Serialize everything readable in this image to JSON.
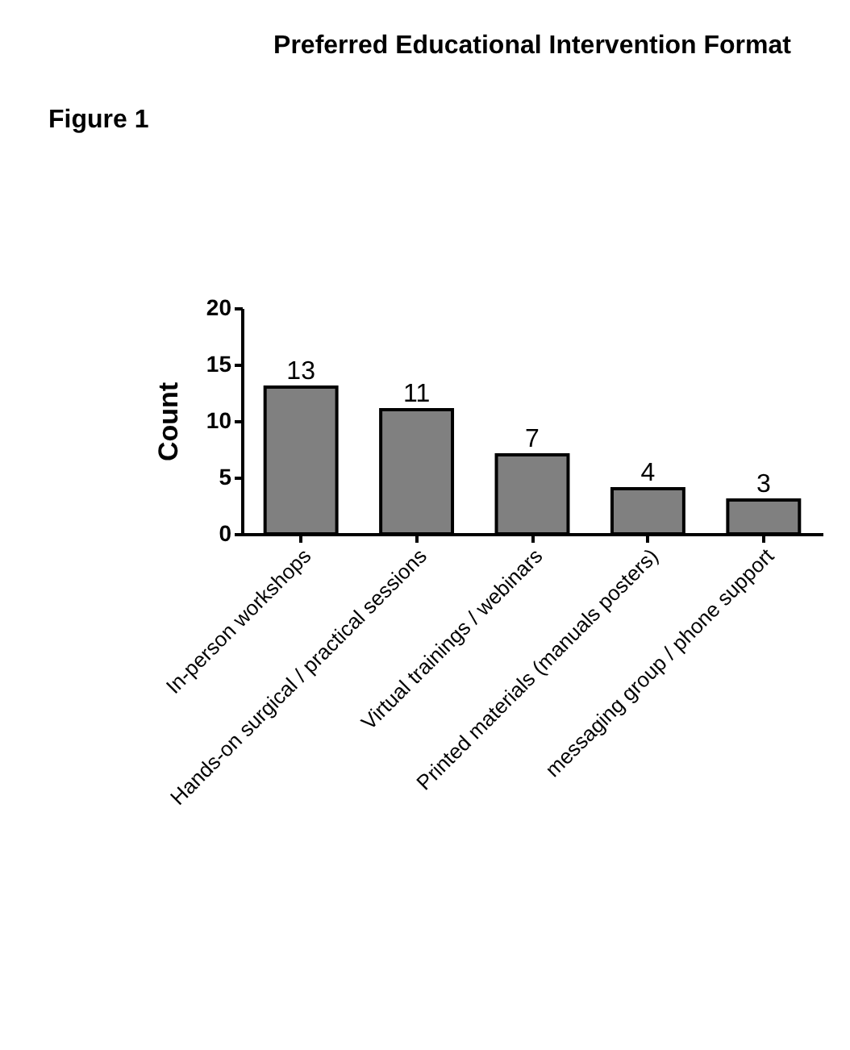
{
  "chart_data": {
    "type": "bar",
    "title": "Preferred Educational Intervention Format",
    "ylabel": "Count",
    "categories": [
      "In-person workshops",
      "Hands-on surgical / practical sessions",
      "Virtual trainings / webinars",
      "Printed materials (manuals posters)",
      "messaging group / phone support"
    ],
    "values": [
      13,
      11,
      7,
      4,
      3
    ],
    "color": "#808080",
    "ylim": [
      0,
      20
    ],
    "yticks": [
      0,
      5,
      10,
      15,
      20
    ],
    "grid": false,
    "data_labels": true,
    "annotations": [
      "Figure 1"
    ]
  }
}
